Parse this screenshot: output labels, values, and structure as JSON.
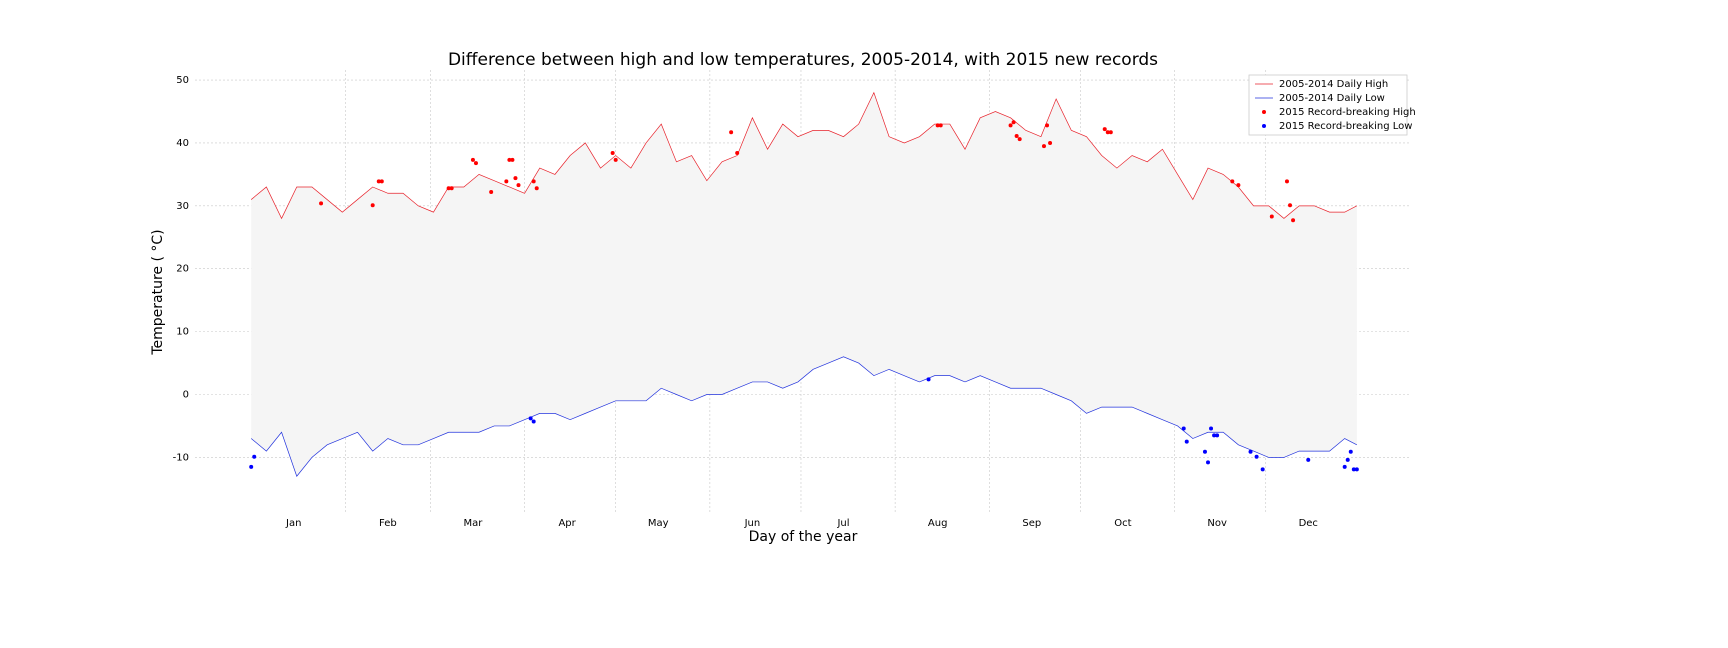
{
  "chart_data": {
    "type": "line",
    "title": "Difference between high and low temperatures, 2005-2014, with 2015 new records",
    "x_label": "Day of the year",
    "y_label": "Temperature ( °C)",
    "xlim": [
      -17.5,
      382.5
    ],
    "ylim": [
      -19,
      51.6
    ],
    "yticks": [
      -10,
      0,
      10,
      20,
      30,
      40,
      50
    ],
    "xticks": [
      {
        "value": 15,
        "label": "Jan"
      },
      {
        "value": 46,
        "label": "Feb"
      },
      {
        "value": 74,
        "label": "Mar"
      },
      {
        "value": 105,
        "label": "Apr"
      },
      {
        "value": 135,
        "label": "May"
      },
      {
        "value": 166,
        "label": "Jun"
      },
      {
        "value": 196,
        "label": "Jul"
      },
      {
        "value": 227,
        "label": "Aug"
      },
      {
        "value": 258,
        "label": "Sep"
      },
      {
        "value": 288,
        "label": "Oct"
      },
      {
        "value": 319,
        "label": "Nov"
      },
      {
        "value": 349,
        "label": "Dec"
      }
    ],
    "x_minor_ticks": [
      32,
      60,
      91,
      121,
      152,
      182,
      213,
      244,
      274,
      305,
      335
    ],
    "grid": true,
    "legend": "upper right",
    "fill_between": true,
    "fill_color": "#f5f5f5",
    "x": [
      1,
      6,
      11,
      16,
      21,
      26,
      31,
      36,
      41,
      46,
      51,
      56,
      61,
      66,
      71,
      76,
      81,
      86,
      91,
      96,
      101,
      106,
      111,
      116,
      121,
      126,
      131,
      136,
      141,
      146,
      151,
      156,
      161,
      166,
      171,
      176,
      181,
      186,
      191,
      196,
      201,
      206,
      211,
      216,
      221,
      226,
      231,
      236,
      241,
      246,
      251,
      256,
      261,
      266,
      271,
      276,
      281,
      286,
      291,
      296,
      301,
      306,
      311,
      316,
      321,
      326,
      331,
      336,
      341,
      346,
      351,
      356,
      361,
      365
    ],
    "series": [
      {
        "name": "2005-2014 Daily High",
        "style": "line",
        "color": "#e8222b",
        "values": [
          31,
          33,
          28,
          33,
          33,
          31,
          29,
          31,
          33,
          32,
          32,
          30,
          29,
          33,
          33,
          35,
          34,
          33,
          32,
          36,
          35,
          38,
          40,
          36,
          38,
          36,
          40,
          43,
          37,
          38,
          34,
          37,
          38,
          44,
          39,
          43,
          41,
          42,
          42,
          41,
          43,
          48,
          41,
          40,
          41,
          43,
          43,
          39,
          44,
          45,
          44,
          42,
          41,
          47,
          42,
          41,
          38,
          36,
          38,
          37,
          39,
          35,
          31,
          36,
          35,
          33,
          30,
          30,
          28,
          30,
          30,
          29,
          29,
          30
        ]
      },
      {
        "name": "2005-2014 Daily Low",
        "style": "line",
        "color": "#2233dd",
        "values": [
          -7,
          -9,
          -6,
          -13,
          -10,
          -8,
          -7,
          -6,
          -9,
          -7,
          -8,
          -8,
          -7,
          -6,
          -6,
          -6,
          -5,
          -5,
          -4,
          -3,
          -3,
          -4,
          -3,
          -2,
          -1,
          -1,
          -1,
          1,
          0,
          -1,
          0,
          0,
          1,
          2,
          2,
          1,
          2,
          4,
          5,
          6,
          5,
          3,
          4,
          3,
          2,
          3,
          3,
          2,
          3,
          2,
          1,
          1,
          1,
          0,
          -1,
          -3,
          -2,
          -2,
          -2,
          -3,
          -4,
          -5,
          -7,
          -6,
          -6,
          -8,
          -9,
          -10,
          -10,
          -9,
          -9,
          -9,
          -7,
          -8
        ]
      },
      {
        "name": "2015 Record-breaking High",
        "style": "scatter",
        "color": "#ff0000",
        "x": [
          24,
          41,
          43,
          44,
          66,
          67,
          74,
          75,
          80,
          85,
          86,
          87,
          88,
          89,
          94,
          95,
          120,
          121,
          159,
          161,
          227,
          228,
          251,
          252,
          253,
          254,
          262,
          263,
          264,
          282,
          283,
          284,
          324,
          326,
          337,
          342,
          343,
          344
        ],
        "values": [
          30.4,
          30.1,
          33.9,
          33.9,
          32.8,
          32.8,
          37.3,
          36.8,
          32.2,
          33.9,
          37.3,
          37.3,
          34.4,
          33.3,
          33.9,
          32.8,
          38.4,
          37.3,
          41.7,
          38.4,
          42.8,
          42.8,
          42.8,
          43.3,
          41.1,
          40.6,
          39.5,
          42.8,
          40,
          42.2,
          41.7,
          41.7,
          33.9,
          33.3,
          28.3,
          33.9,
          30.1,
          27.7
        ]
      },
      {
        "name": "2015 Record-breaking Low",
        "style": "scatter",
        "color": "#0000ff",
        "x": [
          1,
          2,
          93,
          94,
          224,
          308,
          309,
          315,
          316,
          317,
          318,
          319,
          330,
          332,
          334,
          349,
          361,
          362,
          363,
          364,
          365
        ],
        "values": [
          -11.5,
          -9.9,
          -3.8,
          -4.3,
          2.4,
          -5.4,
          -7.5,
          -9.1,
          -10.8,
          -5.4,
          -6.5,
          -6.5,
          -9.1,
          -9.9,
          -11.9,
          -10.4,
          -11.5,
          -10.4,
          -9.1,
          -11.9,
          -11.9
        ]
      }
    ]
  }
}
